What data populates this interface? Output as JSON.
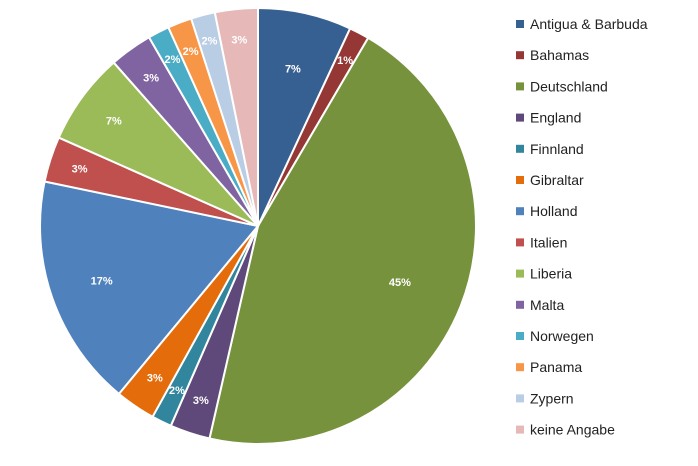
{
  "chart_data": {
    "type": "pie",
    "title": "",
    "legend_position": "right",
    "slices": [
      {
        "label": "Antigua & Barbuda",
        "value": 7,
        "color": "#366092"
      },
      {
        "label": "Bahamas",
        "value": 1,
        "color": "#953735"
      },
      {
        "label": "Deutschland",
        "value": 45,
        "color": "#76923c"
      },
      {
        "label": "England",
        "value": 3,
        "color": "#5f497a"
      },
      {
        "label": "Finnland",
        "value": 2,
        "color": "#31859c"
      },
      {
        "label": "Gibraltar",
        "value": 3,
        "color": "#e46c0a"
      },
      {
        "label": "Holland",
        "value": 17,
        "color": "#4f81bd"
      },
      {
        "label": "Italien",
        "value": 3,
        "color": "#c0504d"
      },
      {
        "label": "Liberia",
        "value": 7,
        "color": "#9bbb59"
      },
      {
        "label": "Malta",
        "value": 3,
        "color": "#8064a2"
      },
      {
        "label": "Norwegen",
        "value": 2,
        "color": "#4bacc6"
      },
      {
        "label": "Panama",
        "value": 2,
        "color": "#f79646"
      },
      {
        "label": "Zypern",
        "value": 2,
        "color": "#b9cde5"
      },
      {
        "label": "keine Angabe",
        "value": 3,
        "color": "#e6b9b8"
      }
    ],
    "data_labels": [
      "7%",
      "1%",
      "45%",
      "3%",
      "2%",
      "3%",
      "17%",
      "3%",
      "7%",
      "3%",
      "2%",
      "2%",
      "2%",
      "3%"
    ]
  }
}
